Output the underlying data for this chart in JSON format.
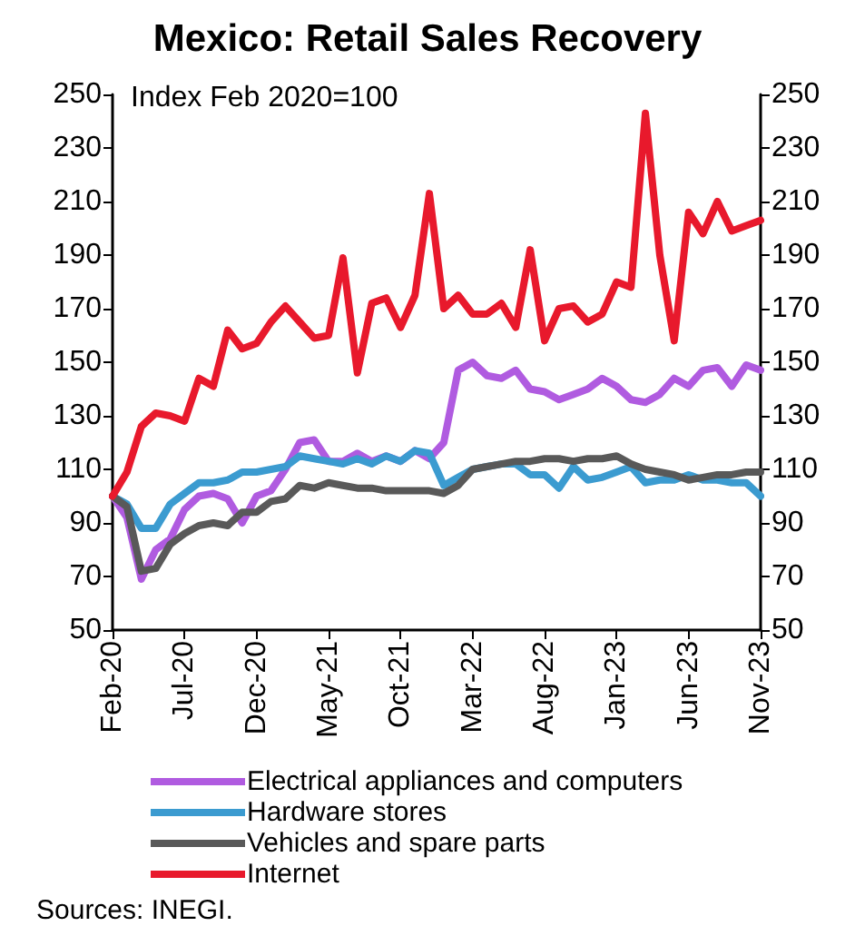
{
  "chart_data": {
    "type": "line",
    "title": "Mexico: Retail Sales Recovery",
    "categories": [
      "Feb-20",
      null,
      null,
      null,
      null,
      "Jul-20",
      null,
      null,
      null,
      null,
      "Dec-20",
      null,
      null,
      null,
      null,
      "May-21",
      null,
      null,
      null,
      null,
      "Oct-21",
      null,
      null,
      null,
      null,
      "Mar-22",
      null,
      null,
      null,
      null,
      "Aug-22",
      null,
      null,
      null,
      null,
      "Jan-23",
      null,
      null,
      null,
      null,
      "Jun-23",
      null,
      null,
      null,
      null,
      "Nov-23"
    ],
    "series": [
      {
        "name": "Electrical appliances and computers",
        "color": "#b05be0",
        "values": [
          100,
          92,
          69,
          80,
          84,
          95,
          100,
          101,
          99,
          90,
          100,
          102,
          110,
          120,
          121,
          113,
          113,
          116,
          113,
          115,
          113,
          117,
          114,
          120,
          147,
          150,
          145,
          144,
          147,
          140,
          139,
          136,
          138,
          140,
          144,
          141,
          136,
          135,
          138,
          144,
          141,
          147,
          148,
          141,
          149,
          147
        ]
      },
      {
        "name": "Hardware stores",
        "color": "#3b9bd0",
        "values": [
          100,
          97,
          88,
          88,
          97,
          101,
          105,
          105,
          106,
          109,
          109,
          110,
          111,
          115,
          114,
          113,
          112,
          114,
          112,
          115,
          113,
          117,
          116,
          104,
          107,
          110,
          111,
          112,
          112,
          108,
          108,
          103,
          111,
          106,
          107,
          109,
          111,
          105,
          106,
          106,
          108,
          106,
          106,
          105,
          105,
          100
        ]
      },
      {
        "name": "Vehicles and spare parts",
        "color": "#595959",
        "values": [
          100,
          96,
          72,
          73,
          82,
          86,
          89,
          90,
          89,
          94,
          94,
          98,
          99,
          104,
          103,
          105,
          104,
          103,
          103,
          102,
          102,
          102,
          102,
          101,
          104,
          110,
          111,
          112,
          113,
          113,
          114,
          114,
          113,
          114,
          114,
          115,
          112,
          110,
          109,
          108,
          106,
          107,
          108,
          108,
          109,
          109
        ]
      },
      {
        "name": "Internet",
        "color": "#e8192c",
        "values": [
          100,
          109,
          126,
          131,
          130,
          128,
          144,
          141,
          162,
          155,
          157,
          165,
          171,
          165,
          159,
          160,
          189,
          146,
          172,
          174,
          163,
          175,
          213,
          170,
          175,
          168,
          168,
          172,
          163,
          192,
          158,
          170,
          171,
          165,
          168,
          180,
          178,
          243,
          190,
          158,
          206,
          198,
          210,
          199,
          201,
          203
        ]
      }
    ],
    "ylim": [
      50,
      250
    ],
    "yticks": [
      50,
      70,
      90,
      110,
      130,
      150,
      170,
      190,
      210,
      230,
      250
    ],
    "y2lim": [
      50,
      250
    ],
    "y2ticks": [
      50,
      70,
      90,
      110,
      130,
      150,
      170,
      190,
      210,
      230,
      250
    ],
    "annotations": [
      "Index Feb 2020=100",
      "Sources: INEGI."
    ],
    "legend": "bottom",
    "grid": false,
    "marker": "none",
    "line_style": "solid"
  }
}
